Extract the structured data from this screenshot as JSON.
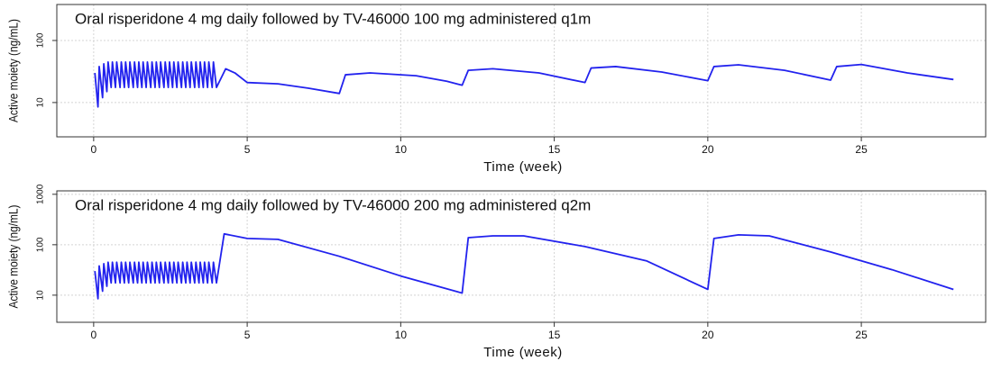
{
  "chart_data": [
    {
      "type": "line",
      "title": "Oral risperidone 4 mg daily followed by TV-46000 100 mg administered q1m",
      "xlabel": "Time (week)",
      "ylabel": "Active moiety (ng/mL)",
      "xlim": [
        -1.2,
        29.05
      ],
      "ylim": [
        2.8,
        380
      ],
      "xticks": [
        0,
        5,
        10,
        15,
        20,
        25
      ],
      "yticks": [
        10,
        100
      ],
      "ylog": true,
      "grid": true,
      "x": [
        0.04,
        0.14,
        0.18,
        0.29,
        0.33,
        0.43,
        0.47,
        0.57,
        0.61,
        0.71,
        0.75,
        0.86,
        0.9,
        1.0,
        1.04,
        1.14,
        1.18,
        1.29,
        1.33,
        1.43,
        1.47,
        1.57,
        1.61,
        1.71,
        1.75,
        1.86,
        1.9,
        2.0,
        2.04,
        2.14,
        2.18,
        2.29,
        2.33,
        2.43,
        2.47,
        2.57,
        2.61,
        2.71,
        2.75,
        2.86,
        2.9,
        3.0,
        3.04,
        3.14,
        3.18,
        3.29,
        3.33,
        3.43,
        3.47,
        3.57,
        3.61,
        3.71,
        3.75,
        3.86,
        3.9,
        4.0,
        4.3,
        4.6,
        5.0,
        6,
        7,
        8,
        8.2,
        9,
        10.5,
        11.5,
        12,
        12.2,
        13,
        14.5,
        16,
        16.2,
        17,
        18.5,
        20,
        20.2,
        21,
        22.5,
        24,
        24.2,
        25,
        26.5,
        28
      ],
      "series": [
        {
          "color": "#2222ee",
          "values": [
            30,
            8.5,
            38,
            12,
            42,
            15,
            45,
            17.5,
            45,
            17.5,
            45,
            17.5,
            45,
            17.5,
            45,
            17.5,
            45,
            17.5,
            45,
            17.5,
            45,
            17.5,
            45,
            17.5,
            45,
            17.5,
            45,
            17.5,
            45,
            17.5,
            45,
            17.5,
            45,
            17.5,
            45,
            17.5,
            45,
            17.5,
            45,
            17.5,
            45,
            17.5,
            45,
            17.5,
            45,
            17.5,
            45,
            17.5,
            45,
            17.5,
            45,
            17.5,
            45,
            17.5,
            45,
            17.5,
            35,
            30,
            21,
            20,
            17,
            14,
            28,
            30,
            27,
            22,
            19,
            33,
            35,
            30,
            21,
            36,
            38,
            31,
            22.5,
            38,
            40.5,
            33,
            23,
            38,
            41,
            30,
            23.5
          ]
        }
      ]
    },
    {
      "type": "line",
      "title": "Oral risperidone 4 mg daily followed by TV-46000 200 mg administered q2m",
      "xlabel": "Time (week)",
      "ylabel": "Active moiety (ng/mL)",
      "xlim": [
        -1.2,
        29.05
      ],
      "ylim": [
        2.9,
        1170
      ],
      "xticks": [
        0,
        5,
        10,
        15,
        20,
        25
      ],
      "yticks": [
        10,
        100,
        1000
      ],
      "ylog": true,
      "grid": true,
      "x": [
        0.04,
        0.14,
        0.18,
        0.29,
        0.33,
        0.43,
        0.47,
        0.57,
        0.61,
        0.71,
        0.75,
        0.86,
        0.9,
        1.0,
        1.04,
        1.14,
        1.18,
        1.29,
        1.33,
        1.43,
        1.47,
        1.57,
        1.61,
        1.71,
        1.75,
        1.86,
        1.9,
        2.0,
        2.04,
        2.14,
        2.18,
        2.29,
        2.33,
        2.43,
        2.47,
        2.57,
        2.61,
        2.71,
        2.75,
        2.86,
        2.9,
        3.0,
        3.04,
        3.14,
        3.18,
        3.29,
        3.33,
        3.43,
        3.47,
        3.57,
        3.61,
        3.71,
        3.75,
        3.86,
        3.9,
        4.0,
        4.25,
        5,
        6,
        8,
        10,
        12,
        12.2,
        13,
        14,
        16,
        18,
        20,
        20.2,
        21,
        22,
        24,
        26,
        28
      ],
      "series": [
        {
          "color": "#2222ee",
          "values": [
            30,
            8.5,
            38,
            12,
            42,
            15,
            45,
            17.5,
            45,
            17.5,
            45,
            17.5,
            45,
            17.5,
            45,
            17.5,
            45,
            17.5,
            45,
            17.5,
            45,
            17.5,
            45,
            17.5,
            45,
            17.5,
            45,
            17.5,
            45,
            17.5,
            45,
            17.5,
            45,
            17.5,
            45,
            17.5,
            45,
            17.5,
            45,
            17.5,
            45,
            17.5,
            45,
            17.5,
            45,
            17.5,
            45,
            17.5,
            45,
            17.5,
            45,
            17.5,
            45,
            17.5,
            45,
            17.5,
            164,
            133,
            128,
            59,
            24,
            11,
            138,
            150,
            150,
            92,
            48,
            13,
            133,
            157,
            150,
            72,
            32,
            13
          ]
        }
      ]
    }
  ]
}
